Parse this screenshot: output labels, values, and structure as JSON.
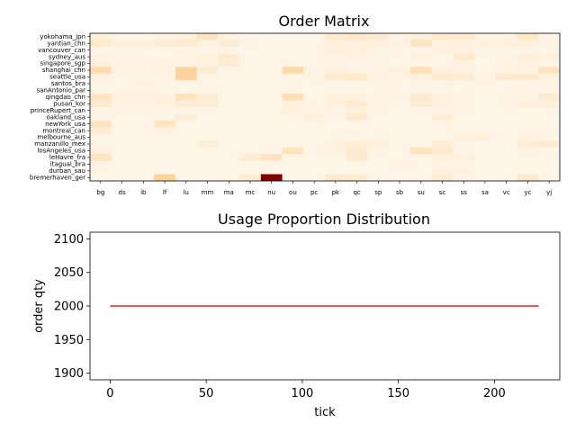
{
  "chart_data": [
    {
      "type": "heatmap",
      "title": "Order Matrix",
      "colormap": "OrRd",
      "columns": [
        "bg",
        "ds",
        "ib",
        "lf",
        "lu",
        "mm",
        "ma",
        "mc",
        "nu",
        "ou",
        "pc",
        "pk",
        "qc",
        "sp",
        "sb",
        "su",
        "sc",
        "ss",
        "sa",
        "vc",
        "yc",
        "yj"
      ],
      "rows": [
        "yokohama_jpn",
        "yantian_chn",
        "vancouver_can",
        "sydney_aus",
        "singapore_sgp",
        "shanghai_chn",
        "seattle_usa",
        "santos_bra",
        "sanAntonio_par",
        "qingdao_chn",
        "pusan_kor",
        "princeRupert_can",
        "oakland_usa",
        "newYork_usa",
        "montreal_can",
        "melbourne_aus",
        "manzanillo_mex",
        "losAngeles_usa",
        "leHavre_fra",
        "itaguai_bra",
        "durban_sau",
        "bremerhaven_ger"
      ],
      "values": [
        [
          0.05,
          0.02,
          0.02,
          0.03,
          0.05,
          0.15,
          0.04,
          0.02,
          0.02,
          0.02,
          0.02,
          0.1,
          0.12,
          0.08,
          0.03,
          0.05,
          0.1,
          0.1,
          0.03,
          0.03,
          0.12,
          0.03
        ],
        [
          0.12,
          0.05,
          0.05,
          0.08,
          0.1,
          0.04,
          0.08,
          0.03,
          0.02,
          0.02,
          0.02,
          0.05,
          0.05,
          0.05,
          0.04,
          0.15,
          0.05,
          0.04,
          0.05,
          0.05,
          0.05,
          0.03
        ],
        [
          0.02,
          0.02,
          0.02,
          0.02,
          0.02,
          0.02,
          0.02,
          0.02,
          0.02,
          0.02,
          0.02,
          0.05,
          0.05,
          0.02,
          0.02,
          0.02,
          0.05,
          0.05,
          0.02,
          0.02,
          0.02,
          0.02
        ],
        [
          0.03,
          0.02,
          0.02,
          0.02,
          0.03,
          0.05,
          0.1,
          0.02,
          0.02,
          0.02,
          0.02,
          0.03,
          0.05,
          0.02,
          0.02,
          0.05,
          0.02,
          0.1,
          0.02,
          0.02,
          0.06,
          0.05
        ],
        [
          0.05,
          0.02,
          0.02,
          0.03,
          0.02,
          0.04,
          0.08,
          0.02,
          0.02,
          0.02,
          0.02,
          0.02,
          0.02,
          0.02,
          0.02,
          0.02,
          0.02,
          0.05,
          0.02,
          0.04,
          0.04,
          0.02
        ],
        [
          0.2,
          0.03,
          0.03,
          0.05,
          0.25,
          0.08,
          0.02,
          0.02,
          0.02,
          0.22,
          0.03,
          0.05,
          0.03,
          0.03,
          0.05,
          0.18,
          0.05,
          0.04,
          0.02,
          0.03,
          0.04,
          0.15
        ],
        [
          0.05,
          0.02,
          0.02,
          0.02,
          0.25,
          0.03,
          0.02,
          0.02,
          0.02,
          0.03,
          0.03,
          0.1,
          0.12,
          0.04,
          0.03,
          0.05,
          0.1,
          0.08,
          0.03,
          0.1,
          0.1,
          0.05
        ],
        [
          0.03,
          0.02,
          0.05,
          0.02,
          0.02,
          0.02,
          0.02,
          0.02,
          0.02,
          0.02,
          0.02,
          0.02,
          0.02,
          0.02,
          0.02,
          0.02,
          0.02,
          0.02,
          0.02,
          0.02,
          0.02,
          0.02
        ],
        [
          0.02,
          0.02,
          0.02,
          0.02,
          0.02,
          0.02,
          0.02,
          0.02,
          0.02,
          0.02,
          0.02,
          0.02,
          0.02,
          0.02,
          0.02,
          0.02,
          0.02,
          0.02,
          0.02,
          0.02,
          0.02,
          0.02
        ],
        [
          0.15,
          0.05,
          0.05,
          0.05,
          0.15,
          0.08,
          0.02,
          0.02,
          0.02,
          0.18,
          0.02,
          0.05,
          0.05,
          0.03,
          0.03,
          0.1,
          0.05,
          0.03,
          0.02,
          0.03,
          0.03,
          0.1
        ],
        [
          0.1,
          0.03,
          0.03,
          0.05,
          0.08,
          0.08,
          0.02,
          0.02,
          0.02,
          0.05,
          0.02,
          0.05,
          0.1,
          0.03,
          0.02,
          0.08,
          0.04,
          0.03,
          0.02,
          0.03,
          0.06,
          0.06
        ],
        [
          0.02,
          0.02,
          0.02,
          0.02,
          0.02,
          0.02,
          0.02,
          0.02,
          0.02,
          0.05,
          0.02,
          0.02,
          0.05,
          0.02,
          0.02,
          0.02,
          0.02,
          0.02,
          0.02,
          0.02,
          0.02,
          0.02
        ],
        [
          0.02,
          0.02,
          0.02,
          0.02,
          0.08,
          0.02,
          0.02,
          0.02,
          0.02,
          0.02,
          0.06,
          0.02,
          0.1,
          0.02,
          0.02,
          0.02,
          0.08,
          0.02,
          0.02,
          0.02,
          0.02,
          0.02
        ],
        [
          0.15,
          0.02,
          0.02,
          0.15,
          0.02,
          0.02,
          0.02,
          0.02,
          0.02,
          0.02,
          0.02,
          0.02,
          0.02,
          0.02,
          0.02,
          0.02,
          0.02,
          0.02,
          0.02,
          0.02,
          0.02,
          0.02
        ],
        [
          0.08,
          0.02,
          0.02,
          0.05,
          0.02,
          0.02,
          0.02,
          0.02,
          0.02,
          0.02,
          0.02,
          0.02,
          0.02,
          0.02,
          0.02,
          0.02,
          0.02,
          0.02,
          0.02,
          0.02,
          0.02,
          0.02
        ],
        [
          0.02,
          0.02,
          0.02,
          0.02,
          0.02,
          0.02,
          0.02,
          0.02,
          0.02,
          0.02,
          0.02,
          0.02,
          0.02,
          0.02,
          0.02,
          0.02,
          0.02,
          0.05,
          0.06,
          0.02,
          0.05,
          0.02
        ],
        [
          0.02,
          0.02,
          0.02,
          0.02,
          0.02,
          0.08,
          0.02,
          0.02,
          0.02,
          0.02,
          0.02,
          0.05,
          0.08,
          0.05,
          0.02,
          0.02,
          0.08,
          0.02,
          0.02,
          0.02,
          0.08,
          0.1
        ],
        [
          0.05,
          0.02,
          0.02,
          0.02,
          0.02,
          0.02,
          0.02,
          0.02,
          0.02,
          0.15,
          0.02,
          0.05,
          0.1,
          0.02,
          0.02,
          0.15,
          0.1,
          0.02,
          0.02,
          0.02,
          0.03,
          0.02
        ],
        [
          0.15,
          0.02,
          0.02,
          0.02,
          0.02,
          0.02,
          0.02,
          0.08,
          0.15,
          0.02,
          0.02,
          0.02,
          0.1,
          0.02,
          0.02,
          0.02,
          0.05,
          0.05,
          0.02,
          0.02,
          0.02,
          0.02
        ],
        [
          0.02,
          0.02,
          0.02,
          0.02,
          0.02,
          0.02,
          0.02,
          0.02,
          0.02,
          0.02,
          0.02,
          0.02,
          0.02,
          0.02,
          0.05,
          0.02,
          0.02,
          0.02,
          0.02,
          0.02,
          0.02,
          0.02
        ],
        [
          0.02,
          0.02,
          0.02,
          0.02,
          0.02,
          0.02,
          0.02,
          0.02,
          0.02,
          0.02,
          0.02,
          0.02,
          0.02,
          0.02,
          0.02,
          0.02,
          0.05,
          0.04,
          0.02,
          0.02,
          0.02,
          0.02
        ],
        [
          0.02,
          0.02,
          0.02,
          0.25,
          0.02,
          0.02,
          0.02,
          0.08,
          1.0,
          0.02,
          0.02,
          0.1,
          0.08,
          0.02,
          0.02,
          0.02,
          0.08,
          0.02,
          0.02,
          0.02,
          0.1,
          0.02
        ]
      ]
    },
    {
      "type": "line",
      "title": "Usage Proportion Distribution",
      "xlabel": "tick",
      "ylabel": "order qty",
      "xlim": [
        -10.5,
        234
      ],
      "ylim": [
        1890,
        2110
      ],
      "xticks": [
        0,
        50,
        100,
        150,
        200
      ],
      "yticks": [
        1900,
        1950,
        2000,
        2050,
        2100
      ],
      "series": [
        {
          "color": "#d62728",
          "x": [
            0,
            223
          ],
          "y": [
            2000,
            2000
          ]
        }
      ]
    }
  ]
}
